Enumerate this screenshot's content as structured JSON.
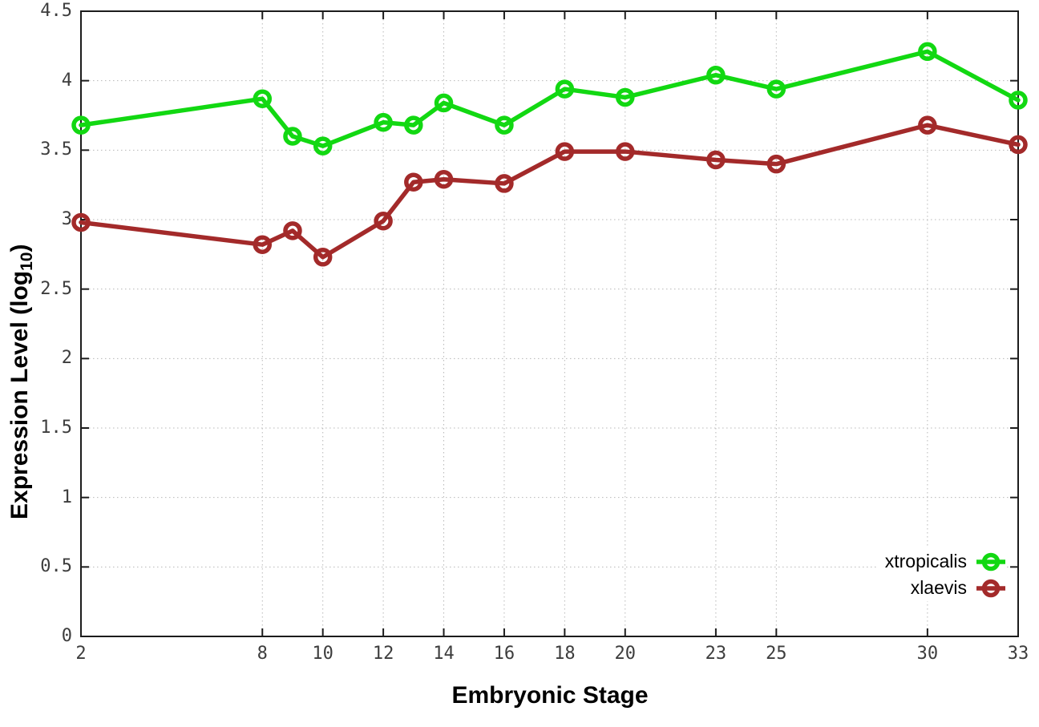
{
  "chart_data": {
    "type": "line",
    "title": "",
    "xlabel": "Embryonic Stage",
    "ylabel": "Expression Level (log10)",
    "ylabel_parts": {
      "prefix": "Expression Level (log",
      "sub": "10",
      "suffix": ")"
    },
    "x": [
      2,
      8,
      9,
      10,
      12,
      13,
      14,
      16,
      18,
      20,
      23,
      25,
      30,
      33
    ],
    "xlim": [
      2,
      33
    ],
    "ylim": [
      0,
      4.5
    ],
    "x_ticks": [
      2,
      8,
      10,
      12,
      14,
      16,
      18,
      20,
      23,
      25,
      30,
      33
    ],
    "y_ticks": [
      0,
      0.5,
      1,
      1.5,
      2,
      2.5,
      3,
      3.5,
      4,
      4.5
    ],
    "grid": true,
    "legend_position": "bottom-right",
    "series": [
      {
        "name": "xtropicalis",
        "color": "#12d812",
        "values": [
          3.68,
          3.87,
          3.6,
          3.53,
          3.7,
          3.68,
          3.84,
          3.68,
          3.94,
          3.88,
          4.04,
          3.94,
          4.21,
          3.86
        ]
      },
      {
        "name": "xlaevis",
        "color": "#a32a2a",
        "values": [
          2.98,
          2.82,
          2.92,
          2.73,
          2.99,
          3.27,
          3.29,
          3.26,
          3.49,
          3.49,
          3.43,
          3.4,
          3.68,
          3.54
        ]
      }
    ]
  },
  "styles": {
    "background": "#ffffff",
    "axis_color": "#1c1c1c",
    "grid_color": "#b8b8b8",
    "tick_label_color": "#3d3d3d",
    "title_color": "#000000"
  }
}
